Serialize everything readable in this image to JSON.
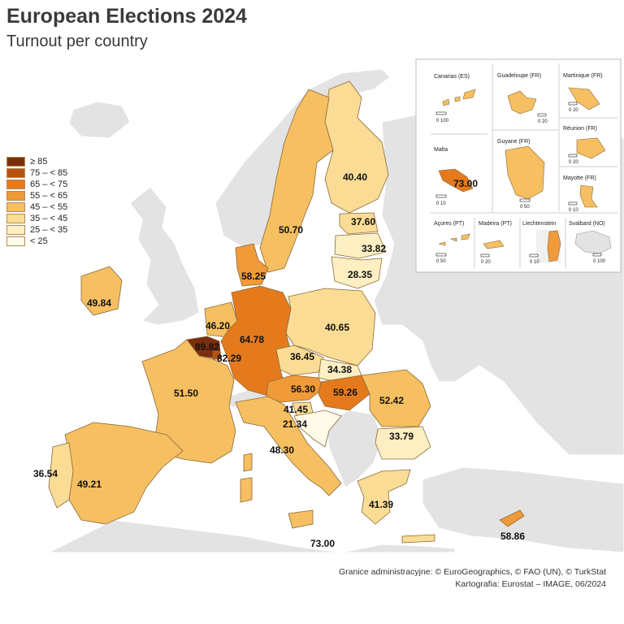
{
  "title": "European Elections 2024",
  "subtitle": "Turnout per country",
  "legend": {
    "classes": [
      {
        "label": "≥ 85",
        "color": "#7a2f0c"
      },
      {
        "label": "75 – < 85",
        "color": "#b9520e"
      },
      {
        "label": "65 – < 75",
        "color": "#e57a1c"
      },
      {
        "label": "55 – < 65",
        "color": "#f09a3a"
      },
      {
        "label": "45 – < 55",
        "color": "#f6bf61"
      },
      {
        "label": "35 – < 45",
        "color": "#fbdc95"
      },
      {
        "label": "25 – < 35",
        "color": "#fdefc2"
      },
      {
        "label": "< 25",
        "color": "#fffbe8"
      }
    ]
  },
  "values": {
    "belgium": "89.82",
    "luxembourg": "82.29",
    "malta": "73.00",
    "malta_main": "73.00",
    "germany": "64.78",
    "hungary": "59.26",
    "denmark": "58.25",
    "cyprus": "58.86",
    "austria": "56.30",
    "romania": "52.42",
    "france": "51.50",
    "sweden": "50.70",
    "ireland": "49.84",
    "spain": "49.21",
    "italy": "48.30",
    "netherlands": "46.20",
    "slovenia": "41.45",
    "greece": "41.39",
    "poland": "40.65",
    "finland": "40.40",
    "estonia": "37.60",
    "portugal": "36.54",
    "czechia": "36.45",
    "slovakia": "34.38",
    "latvia": "33.82",
    "bulgaria": "33.79",
    "lithuania": "28.35",
    "croatia": "21.34"
  },
  "insets": {
    "canarias": "Canarias (ES)",
    "guadeloupe": "Guadeloupe (FR)",
    "martinique": "Martinique (FR)",
    "reunion": "Réunion (FR)",
    "malta": "Malta",
    "guyane": "Guyane (FR)",
    "mayotte": "Mayotte (FR)",
    "acores": "Açores (PT)",
    "madeira": "Madeira (PT)",
    "liechtenstein": "Liechtenstein",
    "svalbard": "Svalbard (NO)"
  },
  "scales": {
    "canarias": "0  100",
    "guadeloupe": "0  20",
    "martinique": "0  20",
    "reunion": "0  20",
    "malta": "0  10",
    "guyane": "0  50",
    "mayotte": "0  10",
    "acores": "0  50",
    "madeira": "0  20",
    "liechtenstein": "0  10",
    "svalbard": "0 100"
  },
  "credits": {
    "line1": "Granice administracyjne: © EuroGeographics, © FAO (UN), © TurkStat",
    "line2": "Kartografia: Eurostat – IMAGE, 06/2024"
  }
}
